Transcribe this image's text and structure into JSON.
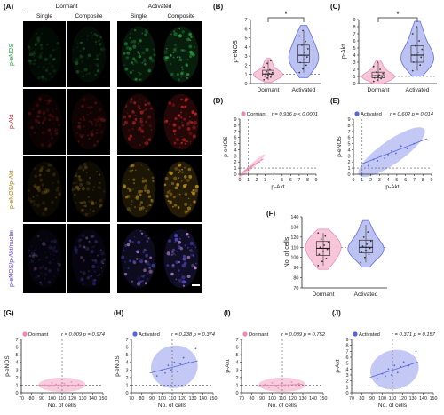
{
  "panel_labels": [
    "(A)",
    "(B)",
    "(C)",
    "(D)",
    "(E)",
    "(F)",
    "(G)",
    "(H)",
    "(I)",
    "(J)"
  ],
  "microscopy": {
    "group_headers": [
      "Dormant",
      "Activated"
    ],
    "column_headers": [
      "Single",
      "Composite",
      "Single",
      "Composite"
    ],
    "rows": [
      {
        "label": "p-eNOS",
        "color": "#1a9e3a"
      },
      {
        "label": "p-Akt",
        "color": "#d42020"
      },
      {
        "label": "p-eNOS/p-Akt",
        "color": "#1a9e3a",
        "accent": "#d42020"
      },
      {
        "label": "p-eNOS/p-Akt/nuclei",
        "color": "#1a9e3a",
        "accent": "#2a3bd6"
      }
    ],
    "row_colors": [
      "#2fa84a",
      "#cc2a2a",
      "#c89a22",
      "#5a4fd0"
    ]
  },
  "colors": {
    "dormant": "#e98cb3",
    "dormant_fill": "#f7c3d7",
    "activated": "#5566dd",
    "activated_fill": "#b9c0f2",
    "dash": "#555555"
  },
  "chart_data": [
    {
      "id": "B",
      "type": "violin",
      "categories": [
        "Dormant",
        "Activated"
      ],
      "ylabel": "p-eNOS",
      "ylim": [
        0,
        7
      ],
      "yticks": [
        0,
        1,
        2,
        3,
        4,
        5,
        6,
        7
      ],
      "series": [
        {
          "name": "Dormant",
          "values": [
            0.4,
            0.6,
            0.7,
            0.8,
            0.9,
            1.0,
            1.0,
            1.1,
            1.2,
            1.3,
            1.5,
            1.8,
            2.2,
            2.5
          ]
        },
        {
          "name": "Activated",
          "values": [
            1.2,
            1.6,
            2.0,
            2.3,
            2.6,
            2.9,
            3.1,
            3.4,
            3.8,
            4.2,
            4.6,
            5.2,
            5.8
          ]
        }
      ],
      "significance": "*",
      "reference_line": 1
    },
    {
      "id": "C",
      "type": "violin",
      "categories": [
        "Dormant",
        "Activated"
      ],
      "ylabel": "p-Akt",
      "ylim": [
        0,
        9
      ],
      "yticks": [
        0,
        1,
        2,
        3,
        4,
        5,
        6,
        7,
        8,
        9
      ],
      "series": [
        {
          "name": "Dormant",
          "values": [
            0.3,
            0.5,
            0.7,
            0.8,
            0.9,
            1.0,
            1.1,
            1.2,
            1.4,
            1.6,
            2.0,
            2.4,
            3.0
          ]
        },
        {
          "name": "Activated",
          "values": [
            1.8,
            2.2,
            2.6,
            3.0,
            3.3,
            3.7,
            4.0,
            4.4,
            4.8,
            5.3,
            6.0,
            7.0,
            8.0
          ]
        }
      ],
      "significance": "*",
      "reference_line": 1
    },
    {
      "id": "D",
      "type": "scatter",
      "legend": "Dormant",
      "stats": "r = 0.936  p < 0.0001",
      "xlabel": "p-Akt",
      "ylabel": "p-eNOS",
      "xlim": [
        0,
        9
      ],
      "ylim": [
        0,
        9
      ],
      "xticks": [
        0,
        1,
        2,
        3,
        4,
        5,
        6,
        7,
        8,
        9
      ],
      "yticks": [
        0,
        1,
        2,
        3,
        4,
        5,
        6,
        7,
        8,
        9
      ],
      "x": [
        0.3,
        0.5,
        0.6,
        0.8,
        0.9,
        1.0,
        1.2,
        1.4,
        1.6,
        1.9,
        2.3,
        2.6
      ],
      "y": [
        0.3,
        0.4,
        0.6,
        0.7,
        0.8,
        1.0,
        1.1,
        1.3,
        1.5,
        1.7,
        2.0,
        2.4
      ],
      "fit": {
        "x": [
          0.2,
          2.8
        ],
        "y": [
          0.2,
          2.5
        ]
      },
      "ellipse": {
        "cx": 1.4,
        "cy": 1.3,
        "rx": 2.1,
        "ry": 0.35,
        "angle": -42
      },
      "series_color": "dormant",
      "reference_line": [
        1,
        1
      ]
    },
    {
      "id": "E",
      "type": "scatter",
      "legend": "Activated",
      "stats": "r = 0.602  p = 0.014",
      "xlabel": "p-Akt",
      "ylabel": "p-eNOS",
      "xlim": [
        0,
        9
      ],
      "ylim": [
        0,
        9
      ],
      "xticks": [
        0,
        1,
        2,
        3,
        4,
        5,
        6,
        7,
        8,
        9
      ],
      "yticks": [
        0,
        1,
        2,
        3,
        4,
        5,
        6,
        7,
        8,
        9
      ],
      "x": [
        1.7,
        2.3,
        2.8,
        3.2,
        3.6,
        4.0,
        4.4,
        4.9,
        5.5,
        6.2,
        7.0
      ],
      "y": [
        1.4,
        2.4,
        2.2,
        3.0,
        2.6,
        3.2,
        3.8,
        3.4,
        4.6,
        4.2,
        5.0
      ],
      "fit": {
        "x": [
          1.0,
          8.5
        ],
        "y": [
          1.7,
          5.8
        ]
      },
      "ellipse": {
        "cx": 4.4,
        "cy": 3.6,
        "rx": 4.6,
        "ry": 1.9,
        "angle": -35
      },
      "series_color": "activated",
      "reference_line": [
        1,
        1
      ]
    },
    {
      "id": "F",
      "type": "violin",
      "categories": [
        "Dormant",
        "Activated"
      ],
      "ylabel": "No. of cells",
      "ylim": [
        70,
        140
      ],
      "yticks": [
        70,
        80,
        90,
        100,
        110,
        120,
        130,
        140
      ],
      "series": [
        {
          "name": "Dormant",
          "values": [
            92,
            96,
            99,
            103,
            106,
            108,
            110,
            112,
            115,
            118,
            121,
            124
          ]
        },
        {
          "name": "Activated",
          "values": [
            95,
            100,
            103,
            105,
            107,
            109,
            111,
            113,
            116,
            120,
            125,
            132
          ]
        }
      ],
      "reference_line": 110
    },
    {
      "id": "G",
      "type": "scatter",
      "legend": "Dormant",
      "stats": "r = 0.009  p = 0.974",
      "xlabel": "No. of cells",
      "ylabel": "p-eNOS",
      "xlim": [
        70,
        150
      ],
      "ylim": [
        0,
        7
      ],
      "xticks": [
        70,
        80,
        90,
        100,
        110,
        120,
        130,
        140,
        150
      ],
      "yticks": [
        0,
        1,
        2,
        3,
        4,
        5,
        6,
        7
      ],
      "x": [
        93,
        97,
        100,
        104,
        106,
        109,
        112,
        116,
        119,
        123,
        126
      ],
      "y": [
        1.0,
        0.8,
        1.3,
        1.1,
        0.6,
        1.0,
        1.2,
        0.9,
        1.4,
        0.8,
        1.1
      ],
      "fit": {
        "x": [
          86,
          130
        ],
        "y": [
          1.0,
          1.01
        ]
      },
      "ellipse": {
        "cx": 110,
        "cy": 1.05,
        "rx": 23,
        "ry": 0.95,
        "angle": 0
      },
      "series_color": "dormant",
      "reference_line": [
        110,
        1
      ]
    },
    {
      "id": "H",
      "type": "scatter",
      "legend": "Activated",
      "stats": "r = 0.238  p = 0.374",
      "xlabel": "No. of cells",
      "ylabel": "p-eNOS",
      "xlim": [
        70,
        150
      ],
      "ylim": [
        0,
        7
      ],
      "xticks": [
        70,
        80,
        90,
        100,
        110,
        120,
        130,
        140,
        150
      ],
      "yticks": [
        0,
        1,
        2,
        3,
        4,
        5,
        6,
        7
      ],
      "x": [
        95,
        100,
        103,
        106,
        109,
        112,
        115,
        118,
        121,
        126,
        133
      ],
      "y": [
        2.2,
        3.0,
        2.6,
        3.6,
        3.0,
        4.0,
        2.8,
        3.8,
        4.6,
        4.0,
        5.8
      ],
      "fit": {
        "x": [
          88,
          135
        ],
        "y": [
          2.6,
          4.2
        ]
      },
      "ellipse": {
        "cx": 112,
        "cy": 3.4,
        "rx": 23,
        "ry": 2.8,
        "angle": -14
      },
      "series_color": "activated",
      "reference_line": [
        110,
        1
      ]
    },
    {
      "id": "I",
      "type": "scatter",
      "legend": "Dormant",
      "stats": "r = 0.089  p = 0.752",
      "xlabel": "No. of cells",
      "ylabel": "p-Akt",
      "xlim": [
        70,
        150
      ],
      "ylim": [
        0,
        7
      ],
      "xticks": [
        70,
        80,
        90,
        100,
        110,
        120,
        130,
        140,
        150
      ],
      "yticks": [
        0,
        1,
        2,
        3,
        4,
        5,
        6,
        7
      ],
      "x": [
        93,
        97,
        100,
        104,
        106,
        109,
        112,
        116,
        119,
        123,
        126
      ],
      "y": [
        1.1,
        0.7,
        1.3,
        0.9,
        0.6,
        1.2,
        1.0,
        0.8,
        1.4,
        1.0,
        1.2
      ],
      "fit": {
        "x": [
          86,
          130
        ],
        "y": [
          0.95,
          1.1
        ]
      },
      "ellipse": {
        "cx": 110,
        "cy": 1.05,
        "rx": 23,
        "ry": 0.95,
        "angle": 0
      },
      "series_color": "dormant",
      "reference_line": [
        110,
        1
      ]
    },
    {
      "id": "J",
      "type": "scatter",
      "legend": "Activated",
      "stats": "r = 0.371  p = 0.157",
      "xlabel": "No. of cells",
      "ylabel": "p-Akt",
      "xlim": [
        70,
        150
      ],
      "ylim": [
        0,
        9
      ],
      "xticks": [
        70,
        80,
        90,
        100,
        110,
        120,
        130,
        140,
        150
      ],
      "yticks": [
        0,
        1,
        2,
        3,
        4,
        5,
        6,
        7,
        8,
        9
      ],
      "x": [
        95,
        100,
        103,
        106,
        109,
        112,
        115,
        118,
        121,
        126,
        133
      ],
      "y": [
        2.4,
        3.2,
        2.8,
        4.0,
        3.0,
        4.6,
        3.4,
        4.4,
        5.2,
        4.6,
        7.0
      ],
      "fit": {
        "x": [
          88,
          135
        ],
        "y": [
          2.6,
          5.2
        ]
      },
      "ellipse": {
        "cx": 112,
        "cy": 3.9,
        "rx": 24,
        "ry": 3.3,
        "angle": -14
      },
      "series_color": "activated",
      "reference_line": [
        110,
        1
      ]
    }
  ]
}
